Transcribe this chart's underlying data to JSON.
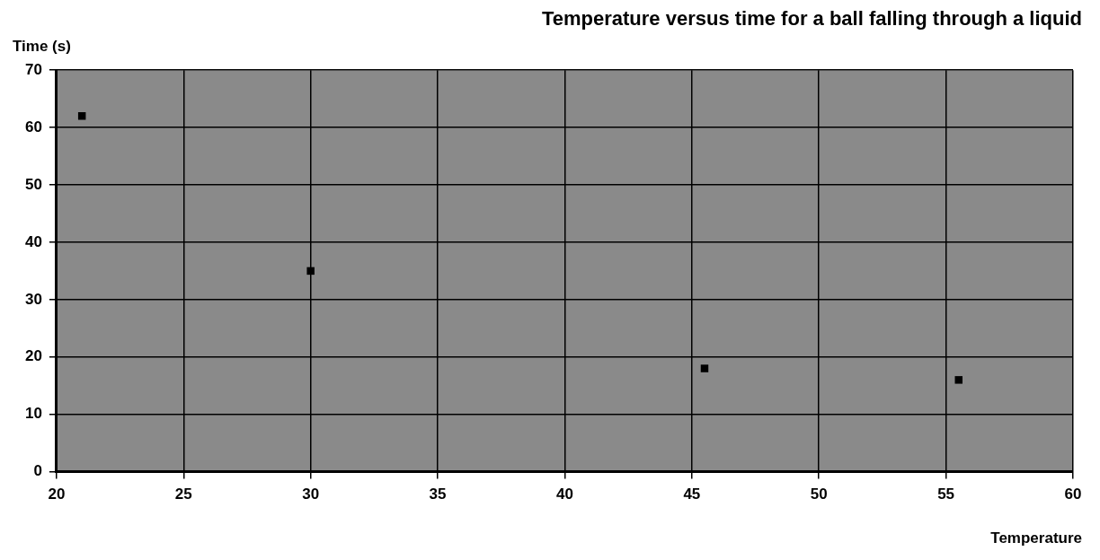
{
  "chart_data": {
    "type": "scatter",
    "title": "Temperature versus time for a ball falling through a liquid",
    "xlabel": "Temperature",
    "ylabel": "Time (s)",
    "x": [
      21,
      30,
      45.5,
      55.5
    ],
    "series": [
      {
        "color": "#000000",
        "values": [
          62,
          35,
          18,
          16
        ]
      }
    ],
    "xlim": [
      20,
      60
    ],
    "xticks": [
      20,
      25,
      30,
      35,
      40,
      45,
      50,
      55,
      60
    ],
    "ylim": [
      0,
      70
    ],
    "yticks": [
      0,
      10,
      20,
      30,
      40,
      50,
      60,
      70
    ],
    "grid": true,
    "marker": "square"
  }
}
